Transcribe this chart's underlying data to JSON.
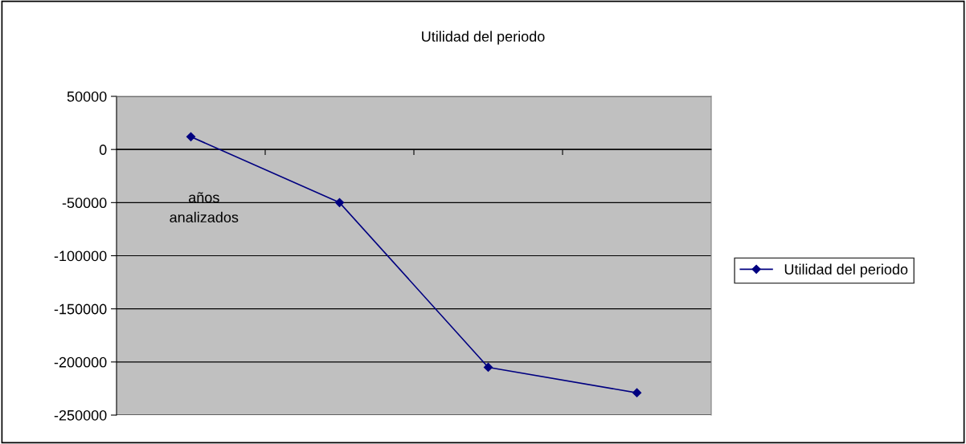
{
  "chart_data": {
    "type": "line",
    "title": "Utilidad del periodo",
    "xlabel": "años analizados",
    "categories": [
      null,
      null,
      null,
      null
    ],
    "series": [
      {
        "name": "Utilidad del periodo",
        "color": "#000080",
        "values": [
          12000,
          -50000,
          -205000,
          -229000
        ]
      }
    ],
    "ylim": [
      -250000,
      50000
    ],
    "yticks": [
      -250000,
      -200000,
      -150000,
      -100000,
      -50000,
      0,
      50000
    ],
    "grid": "y",
    "legend": "right",
    "marker": "diamond",
    "line_style": "solid"
  }
}
